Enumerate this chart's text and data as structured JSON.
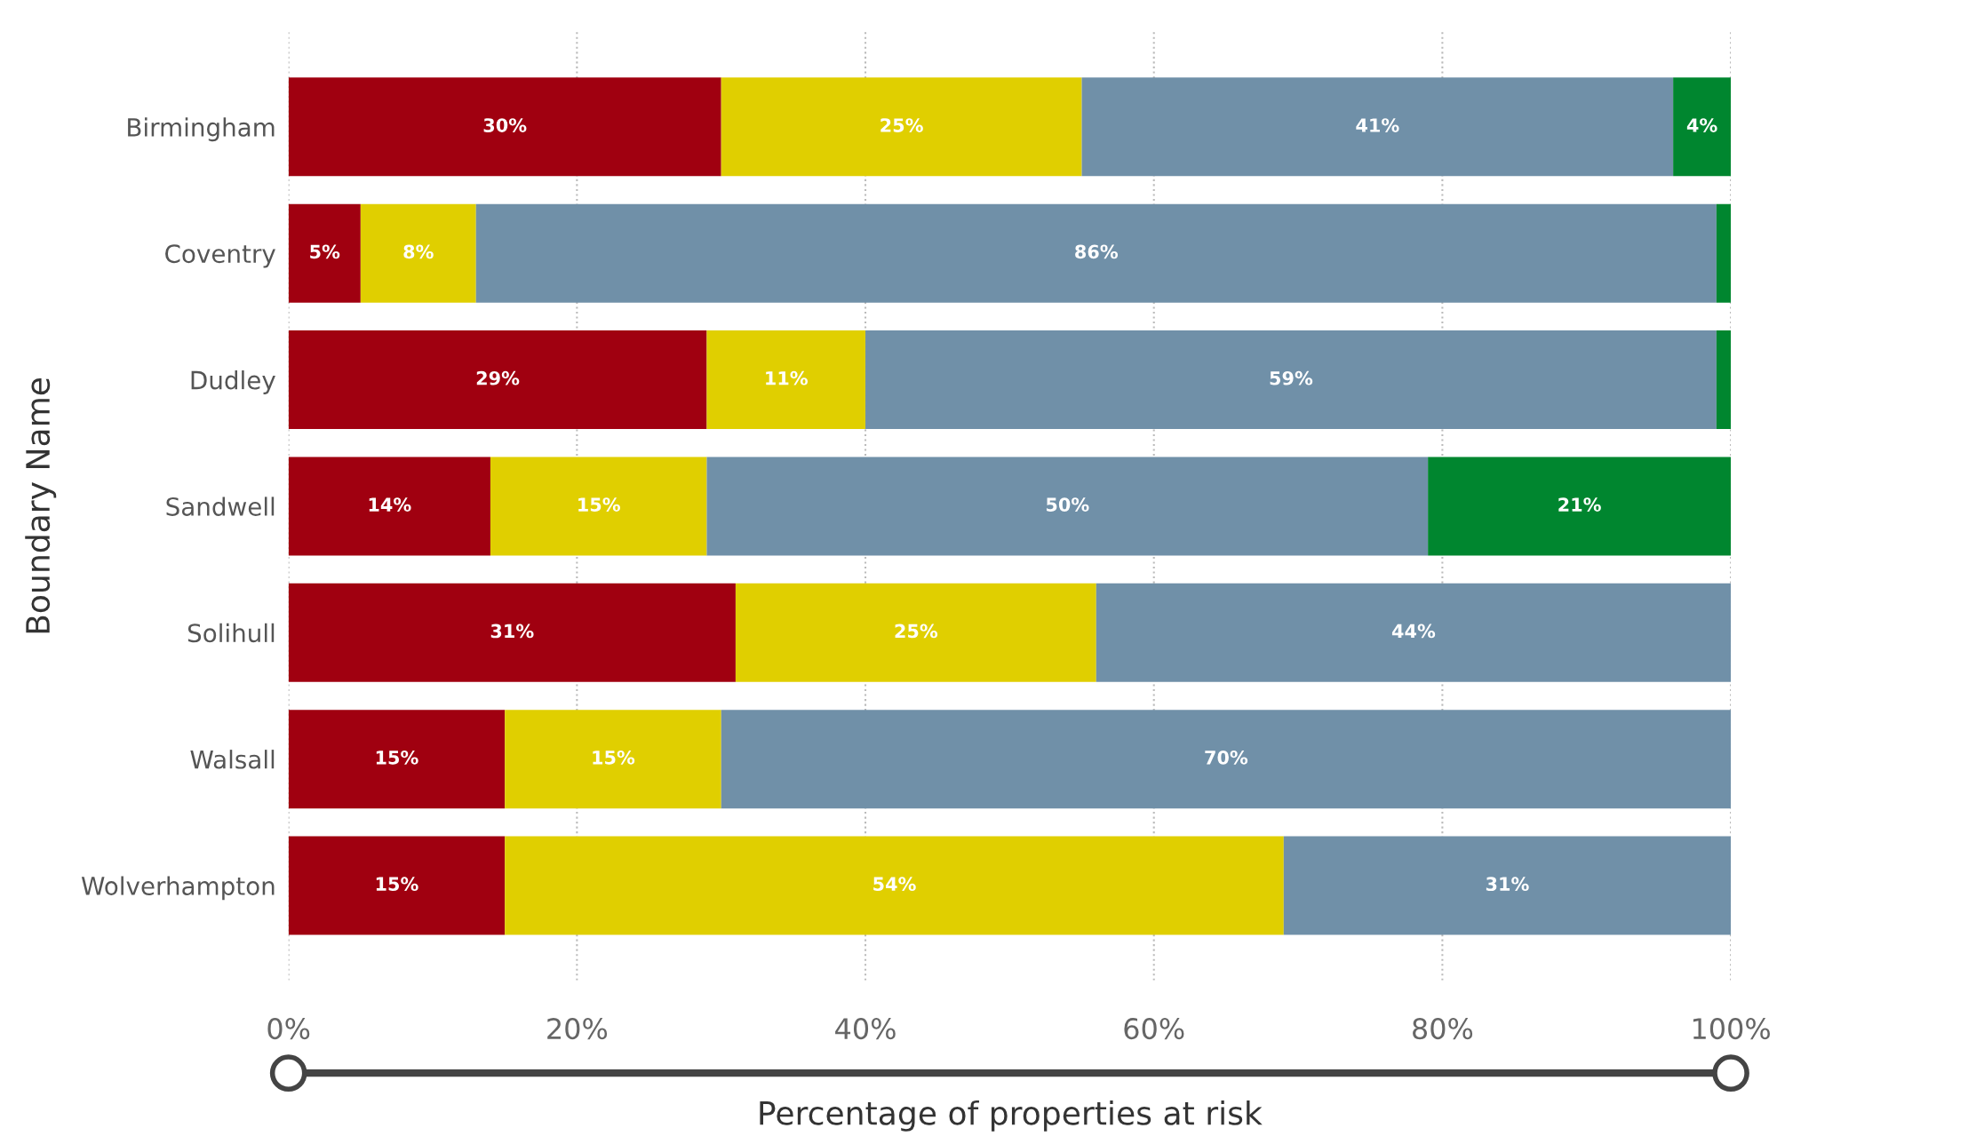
{
  "chart_data": {
    "type": "bar",
    "orientation": "horizontal",
    "stacked": true,
    "xlabel": "Percentage of properties at risk",
    "ylabel": "Boundary Name",
    "categories": [
      "Birmingham",
      "Coventry",
      "Dudley",
      "Sandwell",
      "Solihull",
      "Walsall",
      "Wolverhampton"
    ],
    "series": [
      {
        "color": "#a00010",
        "values": [
          30,
          5,
          29,
          14,
          31,
          15,
          15
        ],
        "value_labels": [
          "30%",
          "5%",
          "29%",
          "14%",
          "31%",
          "15%",
          "15%"
        ]
      },
      {
        "color": "#e0cf00",
        "values": [
          25,
          8,
          11,
          15,
          25,
          15,
          54
        ],
        "value_labels": [
          "25%",
          "8%",
          "11%",
          "15%",
          "25%",
          "15%",
          "54%"
        ]
      },
      {
        "color": "#7090a8",
        "values": [
          41,
          86,
          59,
          50,
          44,
          70,
          31
        ],
        "value_labels": [
          "41%",
          "86%",
          "59%",
          "50%",
          "44%",
          "70%",
          "31%"
        ]
      },
      {
        "color": "#00862f",
        "values": [
          4,
          1,
          1,
          21,
          0,
          0,
          0
        ],
        "value_labels": [
          "4%",
          null,
          null,
          "21%",
          null,
          null,
          null
        ]
      }
    ],
    "xlim": [
      0,
      100
    ],
    "xticks": [
      {
        "value": 0,
        "label": "0%"
      },
      {
        "value": 20,
        "label": "20%"
      },
      {
        "value": 40,
        "label": "40%"
      },
      {
        "value": 60,
        "label": "60%"
      },
      {
        "value": 80,
        "label": "80%"
      },
      {
        "value": 100,
        "label": "100%"
      }
    ],
    "grid": "x",
    "legend": false
  }
}
